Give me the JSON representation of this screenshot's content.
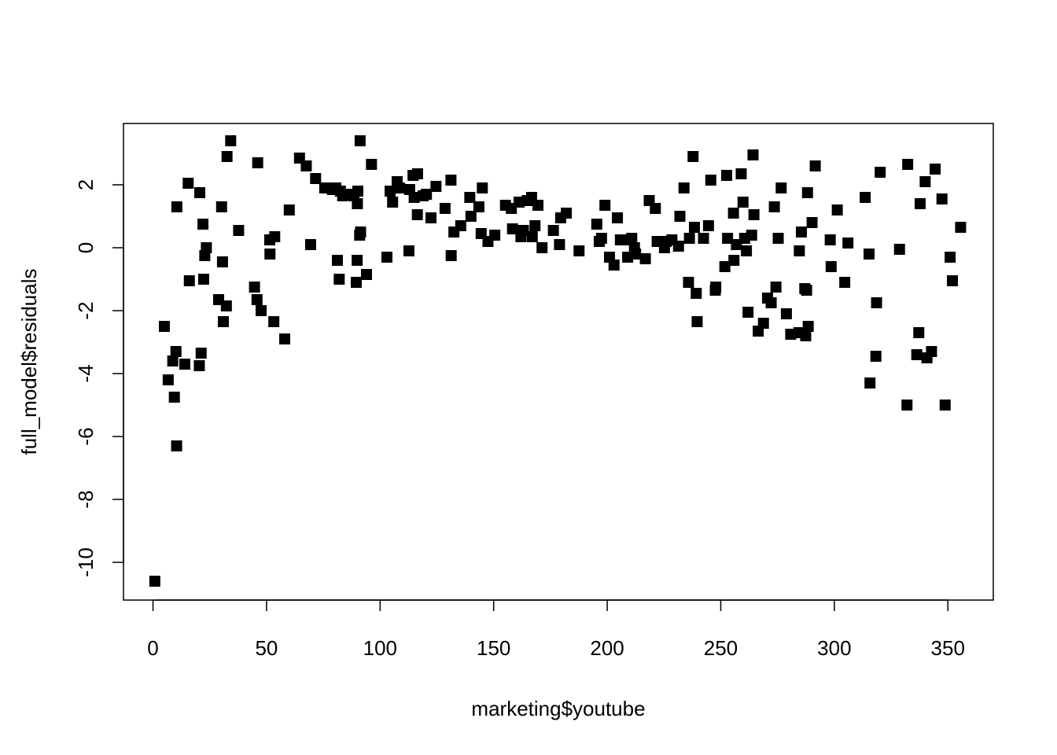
{
  "chart_data": {
    "type": "scatter",
    "xlabel": "marketing$youtube",
    "ylabel": "full_model$residuals",
    "xlim": [
      -13,
      370
    ],
    "ylim": [
      -11.2,
      3.95
    ],
    "xticks": [
      0,
      50,
      100,
      150,
      200,
      250,
      300,
      350
    ],
    "yticks": [
      -10,
      -8,
      -6,
      -4,
      -2,
      0,
      2
    ],
    "xtick_labels": [
      "0",
      "50",
      "100",
      "150",
      "200",
      "250",
      "300",
      "350"
    ],
    "ytick_labels": [
      "-10",
      "-8",
      "-6",
      "-4",
      "-2",
      "0",
      "2"
    ],
    "marker": "filled-square",
    "color": "#000000",
    "points": [
      [
        0.8,
        -10.6
      ],
      [
        5,
        -2.5
      ],
      [
        6.7,
        -4.2
      ],
      [
        8.7,
        -3.6
      ],
      [
        9.4,
        -4.75
      ],
      [
        10.1,
        -3.3
      ],
      [
        10.4,
        -6.3
      ],
      [
        10.5,
        1.3
      ],
      [
        14,
        -3.7
      ],
      [
        15.5,
        2.05
      ],
      [
        16,
        -1.05
      ],
      [
        20.4,
        -3.75
      ],
      [
        20.6,
        1.75
      ],
      [
        21.2,
        -3.35
      ],
      [
        22,
        0.75
      ],
      [
        22.3,
        -1.0
      ],
      [
        22.8,
        -0.25
      ],
      [
        23.5,
        0.0
      ],
      [
        28.9,
        -1.65
      ],
      [
        30.2,
        1.3
      ],
      [
        30.6,
        -0.45
      ],
      [
        31,
        -2.35
      ],
      [
        32.3,
        -1.85
      ],
      [
        32.6,
        2.9
      ],
      [
        34.2,
        3.4
      ],
      [
        37.7,
        0.55
      ],
      [
        44.7,
        -1.25
      ],
      [
        45.8,
        -1.65
      ],
      [
        46.1,
        2.7
      ],
      [
        47.6,
        -2.0
      ],
      [
        51.4,
        0.25
      ],
      [
        51.5,
        -0.2
      ],
      [
        53.2,
        -2.35
      ],
      [
        53.6,
        0.35
      ],
      [
        58,
        -2.9
      ],
      [
        60,
        1.2
      ],
      [
        64.5,
        2.85
      ],
      [
        67.5,
        2.6
      ],
      [
        69.4,
        0.1
      ],
      [
        71.6,
        2.2
      ],
      [
        75.6,
        1.9
      ],
      [
        79,
        1.85
      ],
      [
        80.5,
        1.9
      ],
      [
        81.2,
        -0.4
      ],
      [
        82,
        -1.0
      ],
      [
        82.5,
        1.8
      ],
      [
        83.5,
        1.65
      ],
      [
        85.5,
        1.7
      ],
      [
        88.5,
        1.65
      ],
      [
        89.5,
        -1.1
      ],
      [
        89.9,
        -0.4
      ],
      [
        90,
        1.4
      ],
      [
        90.2,
        1.8
      ],
      [
        91,
        0.4
      ],
      [
        91.2,
        3.4
      ],
      [
        91.4,
        0.5
      ],
      [
        94,
        -0.85
      ],
      [
        96.2,
        2.65
      ],
      [
        103,
        -0.3
      ],
      [
        104.4,
        1.8
      ],
      [
        105.5,
        1.45
      ],
      [
        107.5,
        2.1
      ],
      [
        108.6,
        1.9
      ],
      [
        112.7,
        -0.1
      ],
      [
        113,
        1.85
      ],
      [
        114.5,
        2.3
      ],
      [
        115,
        1.6
      ],
      [
        116.4,
        1.05
      ],
      [
        116.5,
        2.35
      ],
      [
        119,
        1.65
      ],
      [
        120.4,
        1.7
      ],
      [
        122.4,
        0.95
      ],
      [
        124.6,
        1.95
      ],
      [
        128.6,
        1.25
      ],
      [
        131.2,
        2.15
      ],
      [
        131.3,
        -0.25
      ],
      [
        132.5,
        0.5
      ],
      [
        135.5,
        0.7
      ],
      [
        139.5,
        1.6
      ],
      [
        140,
        1.0
      ],
      [
        143.5,
        1.3
      ],
      [
        144.5,
        0.45
      ],
      [
        145,
        1.9
      ],
      [
        147.5,
        0.2
      ],
      [
        150.5,
        0.4
      ],
      [
        155.2,
        1.35
      ],
      [
        157.8,
        1.25
      ],
      [
        158.3,
        0.6
      ],
      [
        161.2,
        1.45
      ],
      [
        162,
        0.35
      ],
      [
        163.1,
        0.55
      ],
      [
        164.8,
        1.5
      ],
      [
        166.7,
        1.6
      ],
      [
        167,
        0.35
      ],
      [
        168.2,
        0.7
      ],
      [
        169.5,
        1.35
      ],
      [
        171.3,
        0.0
      ],
      [
        176.3,
        0.55
      ],
      [
        179,
        0.1
      ],
      [
        179.5,
        0.95
      ],
      [
        182,
        1.1
      ],
      [
        187.6,
        -0.1
      ],
      [
        195.4,
        0.75
      ],
      [
        196.5,
        0.2
      ],
      [
        197.5,
        0.3
      ],
      [
        199,
        1.35
      ],
      [
        201,
        -0.3
      ],
      [
        203,
        -0.55
      ],
      [
        204.5,
        0.95
      ],
      [
        205.8,
        0.25
      ],
      [
        208.2,
        0.25
      ],
      [
        209,
        -0.3
      ],
      [
        210.8,
        0.3
      ],
      [
        212,
        0.0
      ],
      [
        212.5,
        -0.2
      ],
      [
        216.8,
        -0.35
      ],
      [
        218.5,
        1.5
      ],
      [
        221.2,
        1.25
      ],
      [
        222,
        0.2
      ],
      [
        225.2,
        0.0
      ],
      [
        226,
        0.2
      ],
      [
        228.5,
        0.25
      ],
      [
        231.4,
        0.05
      ],
      [
        232,
        1.0
      ],
      [
        233.8,
        1.9
      ],
      [
        235.8,
        -1.1
      ],
      [
        236.2,
        0.3
      ],
      [
        237.8,
        2.9
      ],
      [
        238.4,
        0.65
      ],
      [
        239.2,
        -1.45
      ],
      [
        239.6,
        -2.35
      ],
      [
        242.4,
        0.3
      ],
      [
        244.6,
        0.7
      ],
      [
        245.6,
        2.15
      ],
      [
        247.6,
        -1.35
      ],
      [
        247.8,
        -1.25
      ],
      [
        251.8,
        -0.6
      ],
      [
        252.6,
        2.3
      ],
      [
        253,
        0.3
      ],
      [
        255.6,
        1.1
      ],
      [
        255.8,
        -0.4
      ],
      [
        256.9,
        0.1
      ],
      [
        259,
        2.35
      ],
      [
        259.8,
        1.45
      ],
      [
        260.5,
        0.3
      ],
      [
        261.3,
        -0.1
      ],
      [
        262,
        -2.05
      ],
      [
        263.6,
        0.4
      ],
      [
        264.2,
        2.95
      ],
      [
        264.6,
        1.05
      ],
      [
        266.5,
        -2.65
      ],
      [
        268.8,
        -2.4
      ],
      [
        270.6,
        -1.6
      ],
      [
        272.2,
        -1.75
      ],
      [
        273.6,
        1.3
      ],
      [
        274.3,
        -1.25
      ],
      [
        275.3,
        0.3
      ],
      [
        276.6,
        1.9
      ],
      [
        278.9,
        -2.1
      ],
      [
        280.8,
        -2.75
      ],
      [
        284.4,
        -2.7
      ],
      [
        284.6,
        -0.1
      ],
      [
        285.5,
        0.5
      ],
      [
        287,
        -1.3
      ],
      [
        287.4,
        -2.8
      ],
      [
        287.8,
        -1.35
      ],
      [
        288.2,
        1.75
      ],
      [
        288.5,
        -2.5
      ],
      [
        290.2,
        0.8
      ],
      [
        291.6,
        2.6
      ],
      [
        298.2,
        0.25
      ],
      [
        298.6,
        -0.6
      ],
      [
        301.3,
        1.2
      ],
      [
        304.6,
        -1.1
      ],
      [
        306,
        0.15
      ],
      [
        313.6,
        1.6
      ],
      [
        315.3,
        -0.2
      ],
      [
        315.7,
        -4.3
      ],
      [
        318.3,
        -3.45
      ],
      [
        318.6,
        -1.75
      ],
      [
        320.2,
        2.4
      ],
      [
        328.7,
        -0.05
      ],
      [
        332,
        -5.0
      ],
      [
        332.3,
        2.65
      ],
      [
        336.3,
        -3.4
      ],
      [
        337.2,
        -2.7
      ],
      [
        337.8,
        1.4
      ],
      [
        340,
        2.1
      ],
      [
        340.8,
        -3.5
      ],
      [
        342.8,
        -3.3
      ],
      [
        344.4,
        2.5
      ],
      [
        347.4,
        1.55
      ],
      [
        348.8,
        -5.0
      ],
      [
        351,
        -0.3
      ],
      [
        352,
        -1.05
      ],
      [
        355.6,
        0.65
      ]
    ]
  }
}
